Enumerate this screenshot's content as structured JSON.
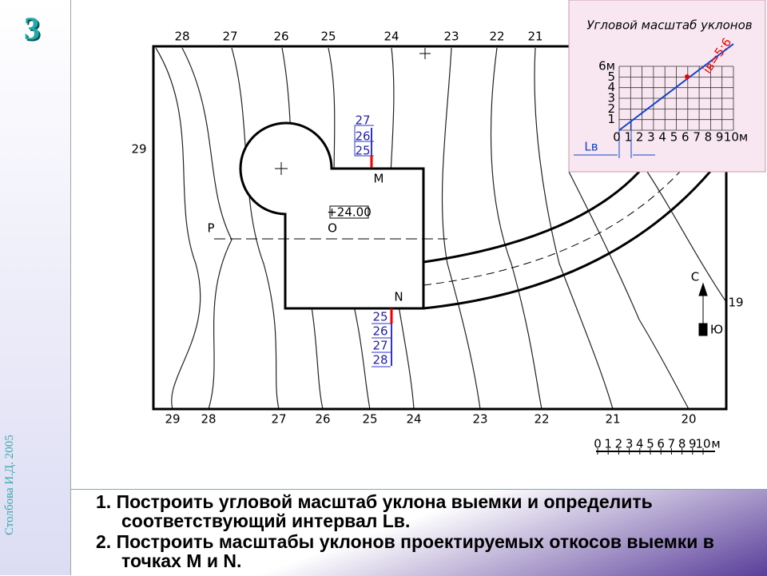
{
  "slide_number": "3",
  "credit": "Столбова И.Д. 2005",
  "plan": {
    "top_labels": [
      "28",
      "27",
      "26",
      "25",
      "24",
      "23",
      "22",
      "21"
    ],
    "left_label": "29",
    "bottom_labels": [
      "29",
      "28",
      "27",
      "26",
      "25",
      "24",
      "23",
      "22",
      "21",
      "20"
    ],
    "right_label": "19",
    "point_m": "M",
    "point_n": "N",
    "point_p": "P",
    "point_o": "O",
    "elevation": "+24.00",
    "m_scale": [
      "27",
      "26",
      "25"
    ],
    "n_scale": [
      "25",
      "26",
      "27",
      "28"
    ],
    "north": "С",
    "south": "Ю",
    "scale_bar": {
      "ticks": [
        "0",
        "1",
        "2",
        "3",
        "4",
        "5",
        "6",
        "7",
        "8",
        "9",
        "10"
      ],
      "unit": "м"
    }
  },
  "inset": {
    "title": "Угловой масштаб уклонов",
    "y_labels": [
      "6м",
      "5",
      "4",
      "3",
      "2",
      "1"
    ],
    "x_labels": [
      "0",
      "1",
      "2",
      "3",
      "4",
      "5",
      "6",
      "7",
      "8",
      "9",
      "10м"
    ],
    "interval": "Lв",
    "slope": "iв=5:6"
  },
  "tasks": [
    "1. Построить угловой масштаб уклона выемки и определить соответствующий интервал Lв.",
    "2. Построить масштабы  уклонов проектируемых откосов выемки в точках M и N."
  ]
}
